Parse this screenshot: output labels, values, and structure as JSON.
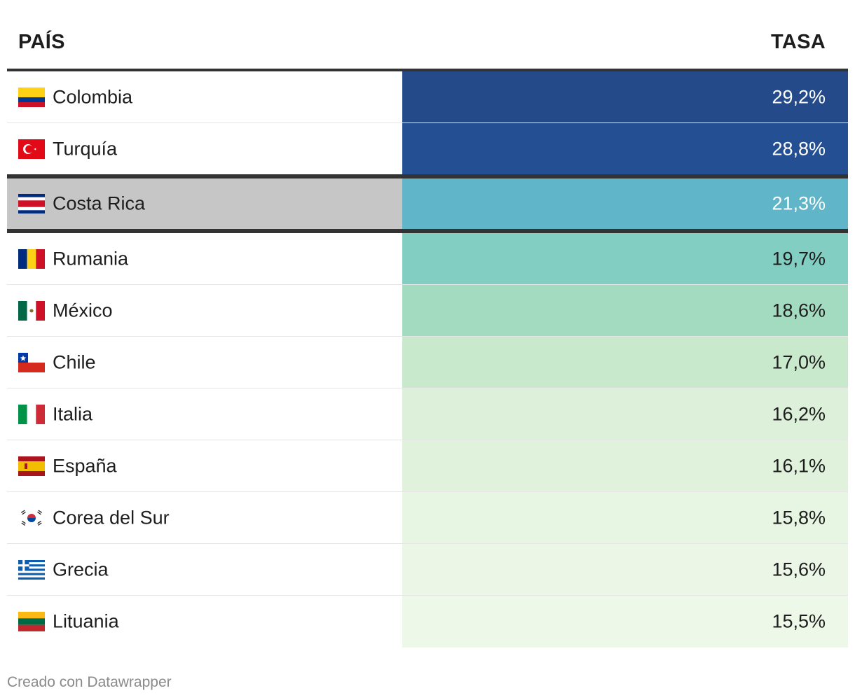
{
  "chart_data": {
    "type": "table",
    "columns": [
      "PAÍS",
      "TASA"
    ],
    "highlight": "Costa Rica",
    "rows": [
      {
        "country": "Colombia",
        "flag": "colombia-flag-icon",
        "value": 29.2,
        "label": "29,2%",
        "cell_color": "#254a8a",
        "text_color": "#ffffff"
      },
      {
        "country": "Turquía",
        "flag": "turkey-flag-icon",
        "value": 28.8,
        "label": "28,8%",
        "cell_color": "#245093",
        "text_color": "#ffffff"
      },
      {
        "country": "Costa Rica",
        "flag": "costa-rica-flag-icon",
        "value": 21.3,
        "label": "21,3%",
        "cell_color": "#60b6c8",
        "text_color": "#ffffff"
      },
      {
        "country": "Rumania",
        "flag": "romania-flag-icon",
        "value": 19.7,
        "label": "19,7%",
        "cell_color": "#83cec3",
        "text_color": "#1d1d1d"
      },
      {
        "country": "México",
        "flag": "mexico-flag-icon",
        "value": 18.6,
        "label": "18,6%",
        "cell_color": "#a2dbc0",
        "text_color": "#1d1d1d"
      },
      {
        "country": "Chile",
        "flag": "chile-flag-icon",
        "value": 17.0,
        "label": "17,0%",
        "cell_color": "#c9e9cc",
        "text_color": "#1d1d1d"
      },
      {
        "country": "Italia",
        "flag": "italy-flag-icon",
        "value": 16.2,
        "label": "16,2%",
        "cell_color": "#ddf1da",
        "text_color": "#1d1d1d"
      },
      {
        "country": "España",
        "flag": "spain-flag-icon",
        "value": 16.1,
        "label": "16,1%",
        "cell_color": "#e0f2dc",
        "text_color": "#1d1d1d"
      },
      {
        "country": "Corea del Sur",
        "flag": "south-korea-flag-icon",
        "value": 15.8,
        "label": "15,8%",
        "cell_color": "#e7f5e3",
        "text_color": "#1d1d1d"
      },
      {
        "country": "Grecia",
        "flag": "greece-flag-icon",
        "value": 15.6,
        "label": "15,6%",
        "cell_color": "#ebf6e7",
        "text_color": "#1d1d1d"
      },
      {
        "country": "Lituania",
        "flag": "lithuania-flag-icon",
        "value": 15.5,
        "label": "15,5%",
        "cell_color": "#eef8e9",
        "text_color": "#1d1d1d"
      }
    ]
  },
  "footer": {
    "credit": "Creado con Datawrapper"
  }
}
